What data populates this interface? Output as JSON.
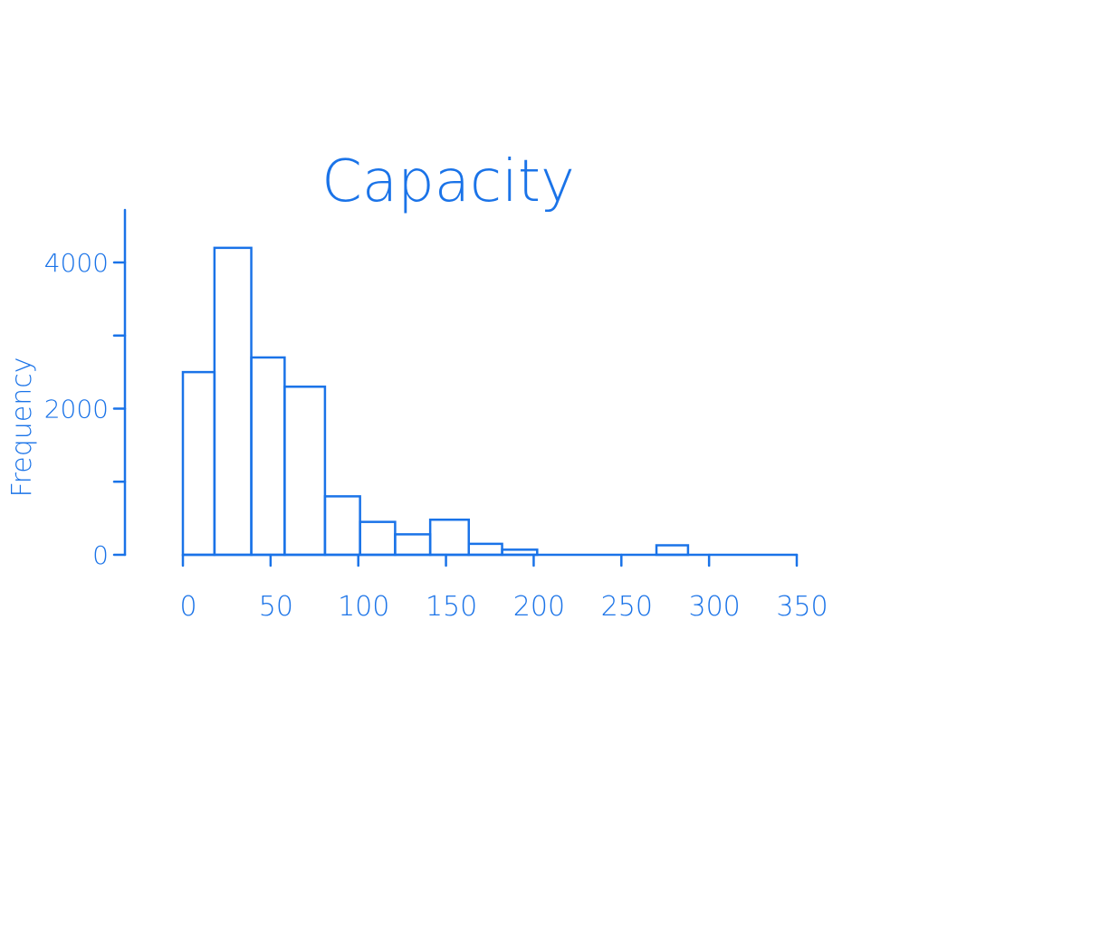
{
  "chart_data": {
    "type": "bar",
    "title": "Capacity",
    "xlabel": "",
    "ylabel": "Frequency",
    "xlim": [
      0,
      350
    ],
    "ylim": [
      0,
      4000
    ],
    "xticks": [
      0,
      50,
      100,
      150,
      200,
      250,
      300,
      350
    ],
    "xtick_labels": [
      "0",
      "50",
      "100",
      "150",
      "200",
      "250",
      "300",
      "350"
    ],
    "yticks": [
      0,
      1000,
      2000,
      3000,
      4000
    ],
    "ytick_labels": [
      "0",
      "",
      "2000",
      "",
      "4000"
    ],
    "bins": [
      {
        "x0": 0,
        "x1": 18,
        "value": 2500
      },
      {
        "x0": 18,
        "x1": 39,
        "value": 4200
      },
      {
        "x0": 39,
        "x1": 58,
        "value": 2700
      },
      {
        "x0": 58,
        "x1": 81,
        "value": 2300
      },
      {
        "x0": 81,
        "x1": 101,
        "value": 800
      },
      {
        "x0": 101,
        "x1": 121,
        "value": 450
      },
      {
        "x0": 121,
        "x1": 141,
        "value": 280
      },
      {
        "x0": 141,
        "x1": 163,
        "value": 480
      },
      {
        "x0": 163,
        "x1": 182,
        "value": 150
      },
      {
        "x0": 182,
        "x1": 202,
        "value": 70
      },
      {
        "x0": 202,
        "x1": 270,
        "value": 0
      },
      {
        "x0": 270,
        "x1": 288,
        "value": 130
      },
      {
        "x0": 288,
        "x1": 350,
        "value": 0
      }
    ],
    "grid": false,
    "colors": {
      "ink": "#1a73e8"
    }
  }
}
